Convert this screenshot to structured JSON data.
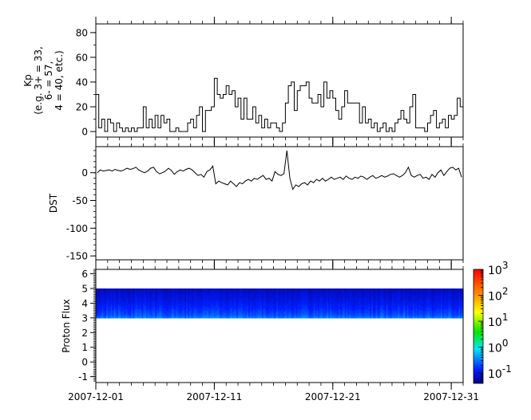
{
  "chart_data": [
    {
      "type": "line",
      "ylabel_lines": [
        "Kp",
        "(e.g. 3+ = 33,",
        "6- = 57,",
        "4 = 40, etc.)"
      ],
      "x_start": "2007-12-01",
      "x_step_hours": 6,
      "xlim": [
        "2007-12-01",
        "2008-01-01"
      ],
      "ylim": [
        -4.5,
        87
      ],
      "y_major_ticks": [
        0,
        20,
        40,
        60,
        80
      ],
      "y_tick_labels": [
        "0",
        "20",
        "40",
        "60",
        "80"
      ],
      "step": true,
      "values": [
        30,
        3,
        10,
        0,
        10,
        7,
        0,
        7,
        3,
        0,
        3,
        0,
        3,
        0,
        3,
        3,
        20,
        3,
        10,
        3,
        13,
        3,
        13,
        7,
        10,
        0,
        0,
        3,
        0,
        0,
        0,
        7,
        10,
        3,
        13,
        20,
        0,
        17,
        17,
        20,
        43,
        30,
        27,
        30,
        37,
        30,
        33,
        20,
        27,
        10,
        27,
        10,
        10,
        20,
        7,
        13,
        3,
        10,
        3,
        7,
        7,
        3,
        0,
        7,
        23,
        37,
        40,
        17,
        33,
        37,
        37,
        40,
        27,
        23,
        23,
        30,
        20,
        40,
        27,
        33,
        27,
        17,
        10,
        20,
        33,
        23,
        23,
        23,
        23,
        7,
        20,
        7,
        10,
        3,
        7,
        0,
        3,
        7,
        0,
        3,
        0,
        7,
        10,
        17,
        10,
        7,
        20,
        30,
        3,
        3,
        3,
        0,
        7,
        13,
        17,
        3,
        7,
        10,
        3,
        13,
        10,
        13,
        27,
        20
      ]
    },
    {
      "type": "line",
      "ylabel": "DST",
      "x_start": "2007-12-01",
      "x_step_hours": 6,
      "xlim": [
        "2007-12-01",
        "2008-01-01"
      ],
      "ylim": [
        -157,
        47
      ],
      "y_major_ticks": [
        0,
        -50,
        -100,
        -150
      ],
      "y_tick_labels": [
        "0",
        "-50",
        "-100",
        "-150"
      ],
      "values": [
        0,
        5,
        3,
        4,
        5,
        3,
        6,
        4,
        3,
        5,
        8,
        6,
        7,
        10,
        5,
        2,
        0,
        3,
        8,
        10,
        2,
        -2,
        0,
        3,
        8,
        4,
        -3,
        2,
        5,
        3,
        6,
        8,
        5,
        0,
        -5,
        -3,
        -8,
        2,
        5,
        12,
        -20,
        -15,
        -18,
        -20,
        -22,
        -15,
        -20,
        -25,
        -18,
        -20,
        -15,
        -12,
        -15,
        -10,
        -12,
        -8,
        -5,
        -12,
        -10,
        -15,
        2,
        -3,
        -5,
        -2,
        40,
        -10,
        -30,
        -22,
        -25,
        -20,
        -18,
        -22,
        -15,
        -18,
        -12,
        -15,
        -10,
        -15,
        -12,
        -8,
        -12,
        -10,
        -8,
        -12,
        -6,
        -10,
        -12,
        -8,
        -10,
        -6,
        -8,
        -12,
        -8,
        -5,
        -10,
        -8,
        -5,
        -8,
        -6,
        -3,
        -2,
        -5,
        -8,
        -5,
        0,
        10,
        -5,
        -8,
        -5,
        -3,
        -10,
        -8,
        -12,
        -3,
        -8,
        0,
        5,
        -5,
        2,
        8,
        10,
        5,
        8,
        -8
      ]
    },
    {
      "type": "heatmap",
      "ylabel": "Proton Flux",
      "xlim": [
        "2007-12-01",
        "2008-01-01"
      ],
      "ylim": [
        -1.4,
        6.3
      ],
      "y_major_ticks": [
        -1,
        0,
        1,
        2,
        3,
        4,
        5,
        6
      ],
      "y_tick_labels": [
        "-1",
        "0",
        "1",
        "2",
        "3",
        "4",
        "5",
        "6"
      ],
      "filled_y_range": [
        3,
        5
      ],
      "flux_at_y3": 0.3,
      "flux_at_y5": 0.07,
      "colorbar": {
        "scale": "log",
        "range": [
          0.04,
          1000
        ],
        "tick_values": [
          0.1,
          1,
          10,
          100,
          1000
        ],
        "tick_labels": [
          {
            "base": "10",
            "exp": "-1"
          },
          {
            "base": "10",
            "exp": "0"
          },
          {
            "base": "10",
            "exp": "1"
          },
          {
            "base": "10",
            "exp": "2"
          },
          {
            "base": "10",
            "exp": "3"
          }
        ],
        "colormap": "rainbow (dark blue → cyan → green → yellow → red)"
      }
    }
  ],
  "x_axis": {
    "tick_dates": [
      "2007-12-01",
      "2007-12-11",
      "2007-12-21",
      "2007-12-31"
    ],
    "tick_labels": [
      "2007-12-01",
      "2007-12-11",
      "2007-12-21",
      "2007-12-31"
    ],
    "minor_tick_every_days": 1
  },
  "line_color": "#000000"
}
